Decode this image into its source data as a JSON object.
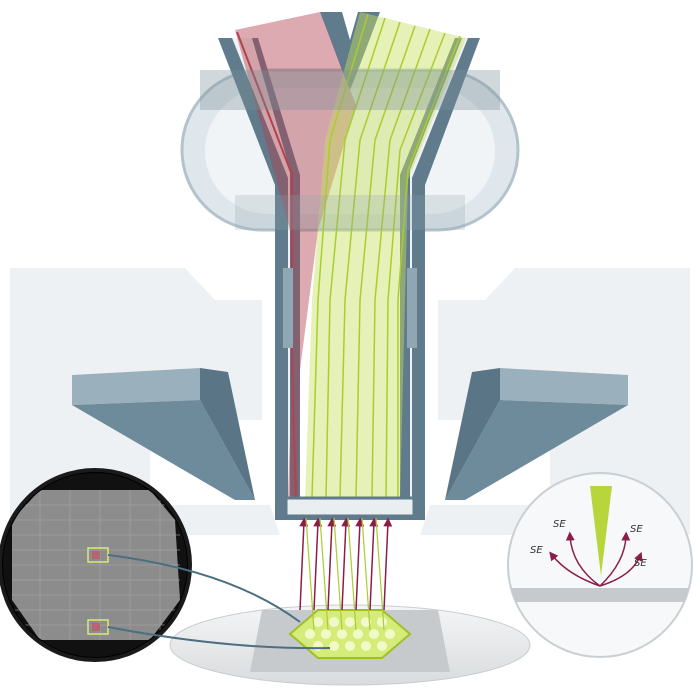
{
  "colors": {
    "column": "#5f7b8c",
    "column_fill": "#e8eef1",
    "detector": "#6e8b9c",
    "red_beam": "#b2424f",
    "green_beam": "#b8d63c",
    "arrow": "#8b1d4a",
    "background_shape": "#eef1f3"
  },
  "labels": {
    "se": [
      "SE",
      "SE",
      "SE",
      "SE"
    ]
  },
  "icons": {
    "zoom_left": "sample-mosaic-zoom",
    "zoom_right": "secondary-electron-emission-zoom"
  }
}
